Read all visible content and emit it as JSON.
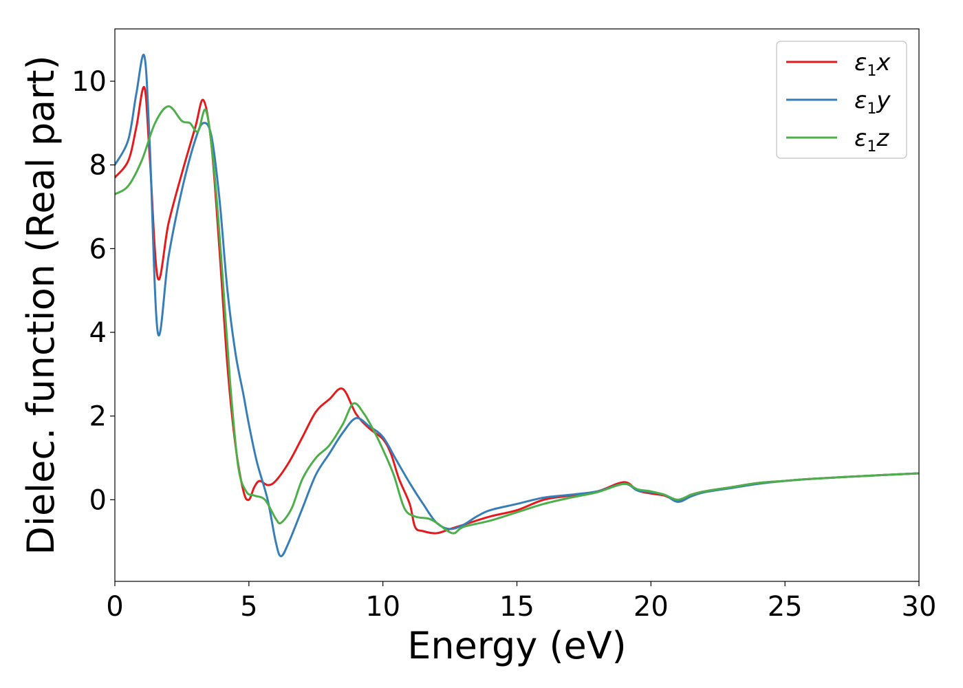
{
  "chart_data": {
    "type": "line",
    "xlabel": "Energy (eV)",
    "ylabel": "Dielec. function (Real part)",
    "xlim": [
      0,
      30
    ],
    "ylim": [
      -1.95,
      11.25
    ],
    "xticks": [
      0,
      5,
      10,
      15,
      20,
      25,
      30
    ],
    "xtick_labels": [
      "0",
      "5",
      "10",
      "15",
      "20",
      "25",
      "30"
    ],
    "yticks": [
      0,
      2,
      4,
      6,
      8,
      10
    ],
    "ytick_labels": [
      "0",
      "2",
      "4",
      "6",
      "8",
      "10"
    ],
    "grid": false,
    "legend_position": "top-right",
    "series": [
      {
        "name": "ε1x",
        "color": "#e41a1c",
        "x": [
          0,
          0.5,
          0.8,
          1.1,
          1.3,
          1.6,
          2.0,
          2.5,
          3.0,
          3.3,
          3.6,
          3.9,
          4.2,
          4.5,
          4.8,
          5.0,
          5.2,
          5.4,
          5.7,
          6.0,
          6.5,
          7.0,
          7.5,
          8.0,
          8.5,
          9.0,
          9.5,
          10.0,
          10.3,
          10.6,
          11.0,
          11.2,
          11.5,
          12.0,
          12.5,
          13.0,
          14.0,
          15.0,
          16.0,
          17.0,
          18.0,
          19.0,
          19.5,
          20.0,
          20.5,
          21.0,
          21.5,
          22.0,
          23.0,
          24.0,
          25.0,
          26.0,
          28.0,
          30.0
        ],
        "y": [
          7.7,
          8.1,
          8.9,
          9.85,
          8.2,
          5.3,
          6.6,
          7.8,
          8.9,
          9.55,
          8.5,
          6.0,
          3.2,
          1.3,
          0.2,
          0.0,
          0.3,
          0.45,
          0.35,
          0.45,
          0.9,
          1.5,
          2.1,
          2.4,
          2.65,
          2.05,
          1.7,
          1.45,
          1.1,
          0.5,
          -0.1,
          -0.65,
          -0.75,
          -0.8,
          -0.7,
          -0.6,
          -0.4,
          -0.25,
          0.0,
          0.1,
          0.2,
          0.42,
          0.22,
          0.15,
          0.1,
          -0.02,
          0.12,
          0.2,
          0.3,
          0.4,
          0.45,
          0.5,
          0.57,
          0.63
        ]
      },
      {
        "name": "ε1y",
        "color": "#377eb8",
        "x": [
          0,
          0.5,
          0.8,
          1.1,
          1.3,
          1.6,
          2.0,
          2.5,
          3.0,
          3.3,
          3.6,
          3.9,
          4.2,
          4.5,
          4.8,
          5.0,
          5.3,
          5.7,
          6.0,
          6.2,
          6.5,
          7.0,
          7.5,
          8.0,
          8.5,
          9.0,
          9.5,
          10.0,
          10.5,
          11.0,
          11.5,
          12.0,
          12.5,
          13.0,
          13.5,
          14.0,
          15.0,
          16.0,
          17.0,
          18.0,
          19.0,
          19.5,
          20.0,
          20.5,
          21.0,
          21.5,
          22.0,
          23.0,
          24.0,
          25.0,
          26.0,
          28.0,
          30.0
        ],
        "y": [
          8.0,
          8.6,
          9.7,
          10.6,
          8.5,
          4.0,
          5.8,
          7.4,
          8.6,
          9.0,
          8.7,
          7.2,
          5.0,
          3.5,
          2.5,
          1.8,
          0.9,
          0.0,
          -1.0,
          -1.35,
          -1.0,
          -0.2,
          0.6,
          1.1,
          1.6,
          1.95,
          1.75,
          1.5,
          0.95,
          0.4,
          -0.1,
          -0.55,
          -0.7,
          -0.6,
          -0.4,
          -0.25,
          -0.1,
          0.05,
          0.12,
          0.2,
          0.38,
          0.22,
          0.18,
          0.12,
          -0.05,
          0.08,
          0.18,
          0.28,
          0.38,
          0.45,
          0.5,
          0.57,
          0.63
        ]
      },
      {
        "name": "ε1z",
        "color": "#4daf4a",
        "x": [
          0,
          0.5,
          1.0,
          1.5,
          2.0,
          2.5,
          2.8,
          3.1,
          3.4,
          3.7,
          4.0,
          4.3,
          4.6,
          4.9,
          5.2,
          5.6,
          6.0,
          6.2,
          6.6,
          7.0,
          7.5,
          8.0,
          8.5,
          8.9,
          9.3,
          9.7,
          10.0,
          10.4,
          10.8,
          11.2,
          11.7,
          12.0,
          12.6,
          13.0,
          14.0,
          15.0,
          16.0,
          17.0,
          18.0,
          19.0,
          19.5,
          20.0,
          20.5,
          21.0,
          21.5,
          22.0,
          23.0,
          24.0,
          25.0,
          26.0,
          28.0,
          30.0
        ],
        "y": [
          7.3,
          7.5,
          8.1,
          9.0,
          9.4,
          9.05,
          9.0,
          8.8,
          9.3,
          7.9,
          5.5,
          2.8,
          0.8,
          0.2,
          0.1,
          0.0,
          -0.45,
          -0.55,
          -0.2,
          0.5,
          1.0,
          1.3,
          1.8,
          2.3,
          2.05,
          1.6,
          1.2,
          0.6,
          -0.2,
          -0.4,
          -0.45,
          -0.55,
          -0.8,
          -0.65,
          -0.5,
          -0.3,
          -0.1,
          0.05,
          0.18,
          0.38,
          0.25,
          0.2,
          0.12,
          0.0,
          0.12,
          0.2,
          0.3,
          0.4,
          0.45,
          0.5,
          0.57,
          0.63
        ]
      }
    ]
  },
  "legend": {
    "entries": [
      {
        "symbol": "ε",
        "sub": "1",
        "suffix": "x",
        "color": "#e41a1c"
      },
      {
        "symbol": "ε",
        "sub": "1",
        "suffix": "y",
        "color": "#377eb8"
      },
      {
        "symbol": "ε",
        "sub": "1",
        "suffix": "z",
        "color": "#4daf4a"
      }
    ]
  }
}
